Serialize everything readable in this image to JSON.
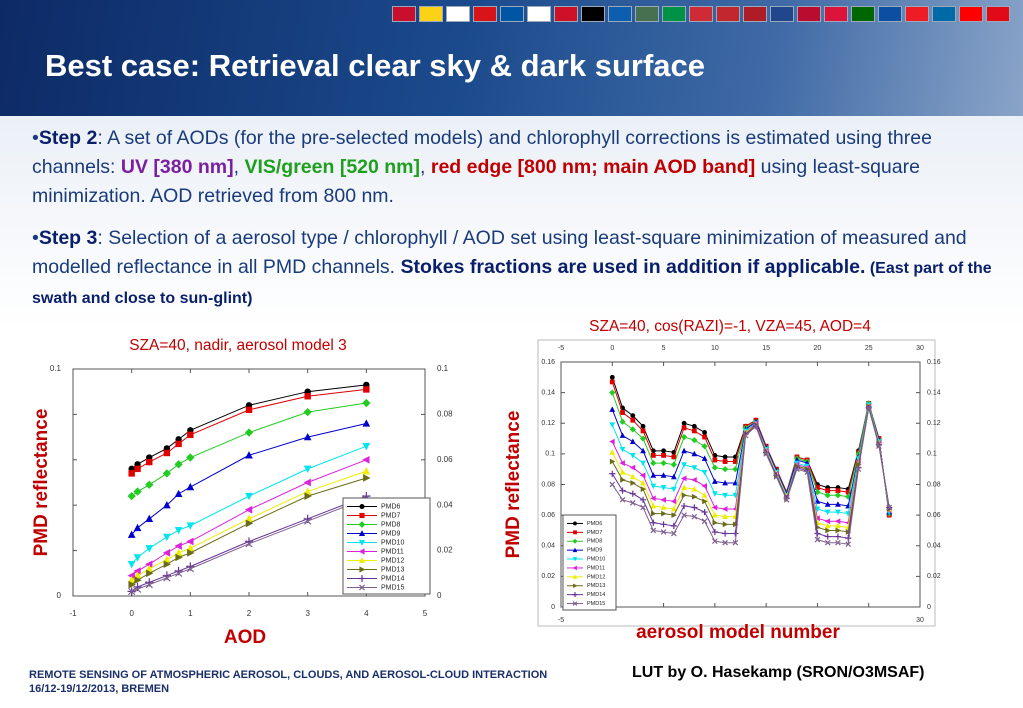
{
  "header": {
    "title": "Best case: Retrieval clear sky & dark surface"
  },
  "bullet_1": [
    "Step 2",
    ": A set of AODs (for the pre-selected models) and chlorophyll corrections is estimated using three channels: ",
    "UV [380 nm]",
    ", ",
    "VIS/green [520 nm]",
    ", ",
    "red edge [800 nm; main AOD band]",
    " using least-square minimization. AOD retrieved from 800 nm."
  ],
  "bullet_2": [
    "Step 3",
    ": Selection of a aerosol type / chlorophyll / AOD  set using least-square minimization of measured and modelled reflectance in all PMD channels. ",
    "Stokes fractions are used in addition if applicable.",
    " (East part of the swath and close to sun-glint)"
  ],
  "footer": {
    "conference": "REMOTE SENSING OF ATMOSPHERIC AEROSOL, CLOUDS, AND AEROSOL-CLOUD INTERACTION",
    "date": "16/12-19/12/2013, BREMEN",
    "credit": "LUT by O. Hasekamp (SRON/O3MSAF)"
  },
  "chart_data": [
    {
      "type": "line",
      "title": "SZA=40, nadir, aerosol model 3",
      "xlabel": "AOD",
      "ylabel": "PMD reflectance",
      "x": [
        0,
        0.1,
        0.3,
        0.6,
        0.8,
        1,
        2,
        3,
        4
      ],
      "xlim": [
        -1,
        5
      ],
      "xticks": [
        -1,
        0,
        1,
        2,
        3,
        4,
        5
      ],
      "ylim": [
        0,
        0.1
      ],
      "yticks": [
        0,
        0.02,
        0.04,
        0.06,
        0.08,
        0.1
      ],
      "series": [
        {
          "name": "PMD6",
          "color": "#000000",
          "marker": "circle",
          "values": [
            0.056,
            0.058,
            0.061,
            0.065,
            0.069,
            0.073,
            0.084,
            0.09,
            0.093
          ]
        },
        {
          "name": "PMD7",
          "color": "#e00000",
          "marker": "square",
          "values": [
            0.054,
            0.056,
            0.059,
            0.063,
            0.067,
            0.071,
            0.082,
            0.088,
            0.091
          ]
        },
        {
          "name": "PMD8",
          "color": "#22cc22",
          "marker": "diamond",
          "values": [
            0.044,
            0.046,
            0.049,
            0.054,
            0.058,
            0.061,
            0.072,
            0.081,
            0.085
          ]
        },
        {
          "name": "PMD9",
          "color": "#0000cc",
          "marker": "tri-up",
          "values": [
            0.027,
            0.03,
            0.034,
            0.04,
            0.045,
            0.048,
            0.062,
            0.07,
            0.076
          ]
        },
        {
          "name": "PMD10",
          "color": "#00e5ee",
          "marker": "tri-down",
          "values": [
            0.014,
            0.017,
            0.021,
            0.026,
            0.029,
            0.031,
            0.044,
            0.056,
            0.066
          ]
        },
        {
          "name": "PMD11",
          "color": "#dd22dd",
          "marker": "tri-left",
          "values": [
            0.009,
            0.011,
            0.014,
            0.019,
            0.022,
            0.024,
            0.038,
            0.05,
            0.06
          ]
        },
        {
          "name": "PMD12",
          "color": "#eeee00",
          "marker": "tri-up",
          "values": [
            0.007,
            0.009,
            0.012,
            0.016,
            0.019,
            0.021,
            0.034,
            0.046,
            0.055
          ]
        },
        {
          "name": "PMD13",
          "color": "#6b6b1a",
          "marker": "tri-right",
          "values": [
            0.005,
            0.007,
            0.01,
            0.014,
            0.017,
            0.019,
            0.032,
            0.044,
            0.052
          ]
        },
        {
          "name": "PMD14",
          "color": "#663399",
          "marker": "plus",
          "values": [
            0.002,
            0.004,
            0.006,
            0.009,
            0.011,
            0.013,
            0.024,
            0.034,
            0.044
          ]
        },
        {
          "name": "PMD15",
          "color": "#7f6090",
          "marker": "cross",
          "values": [
            0.002,
            0.003,
            0.005,
            0.008,
            0.01,
            0.012,
            0.023,
            0.033,
            0.043
          ]
        }
      ]
    },
    {
      "type": "line",
      "title": "SZA=40, cos(RAZI)=-1, VZA=45, AOD=4",
      "xlabel": "aerosol model number",
      "ylabel": "PMD reflectance",
      "x": [
        0,
        1,
        2,
        3,
        4,
        5,
        6,
        7,
        8,
        9,
        10,
        11,
        12,
        13,
        14,
        15,
        16,
        17,
        18,
        19,
        20,
        21,
        22,
        23,
        24,
        25,
        26,
        27
      ],
      "xlim": [
        -5,
        30
      ],
      "xticks": [
        -5,
        0,
        5,
        10,
        15,
        20,
        25,
        30
      ],
      "ylim": [
        0,
        0.16
      ],
      "yticks": [
        0,
        0.02,
        0.04,
        0.06,
        0.08,
        0.1,
        0.12,
        0.14,
        0.16
      ],
      "series": [
        {
          "name": "PMD6",
          "color": "#000000",
          "marker": "circle",
          "values": [
            0.15,
            0.13,
            0.125,
            0.118,
            0.102,
            0.102,
            0.101,
            0.12,
            0.118,
            0.114,
            0.099,
            0.098,
            0.098,
            0.118,
            0.122,
            0.105,
            0.09,
            0.075,
            0.098,
            0.096,
            0.08,
            0.078,
            0.078,
            0.077,
            0.102,
            0.133,
            0.11,
            0.06
          ]
        },
        {
          "name": "PMD7",
          "color": "#e00000",
          "marker": "square",
          "values": [
            0.147,
            0.127,
            0.122,
            0.115,
            0.099,
            0.099,
            0.098,
            0.117,
            0.115,
            0.111,
            0.096,
            0.095,
            0.095,
            0.118,
            0.122,
            0.105,
            0.09,
            0.075,
            0.098,
            0.096,
            0.078,
            0.076,
            0.076,
            0.075,
            0.101,
            0.133,
            0.11,
            0.06
          ]
        },
        {
          "name": "PMD8",
          "color": "#22cc22",
          "marker": "diamond",
          "values": [
            0.14,
            0.121,
            0.116,
            0.11,
            0.094,
            0.094,
            0.093,
            0.111,
            0.109,
            0.105,
            0.091,
            0.09,
            0.09,
            0.117,
            0.121,
            0.104,
            0.089,
            0.074,
            0.097,
            0.095,
            0.075,
            0.073,
            0.073,
            0.072,
            0.1,
            0.133,
            0.109,
            0.061
          ]
        },
        {
          "name": "PMD9",
          "color": "#0000cc",
          "marker": "tri-up",
          "values": [
            0.129,
            0.112,
            0.108,
            0.102,
            0.086,
            0.086,
            0.085,
            0.102,
            0.1,
            0.097,
            0.082,
            0.081,
            0.081,
            0.116,
            0.121,
            0.104,
            0.089,
            0.074,
            0.096,
            0.094,
            0.069,
            0.067,
            0.067,
            0.066,
            0.098,
            0.132,
            0.109,
            0.062
          ]
        },
        {
          "name": "PMD10",
          "color": "#00e5ee",
          "marker": "tri-down",
          "values": [
            0.119,
            0.103,
            0.099,
            0.094,
            0.079,
            0.078,
            0.077,
            0.093,
            0.091,
            0.088,
            0.074,
            0.073,
            0.073,
            0.115,
            0.12,
            0.103,
            0.088,
            0.073,
            0.094,
            0.092,
            0.064,
            0.062,
            0.062,
            0.061,
            0.097,
            0.132,
            0.108,
            0.062
          ]
        },
        {
          "name": "PMD11",
          "color": "#dd22dd",
          "marker": "tri-left",
          "values": [
            0.108,
            0.094,
            0.091,
            0.086,
            0.071,
            0.07,
            0.069,
            0.084,
            0.083,
            0.079,
            0.065,
            0.064,
            0.064,
            0.114,
            0.12,
            0.102,
            0.087,
            0.072,
            0.093,
            0.091,
            0.058,
            0.056,
            0.056,
            0.055,
            0.095,
            0.131,
            0.107,
            0.063
          ]
        },
        {
          "name": "PMD12",
          "color": "#eeee00",
          "marker": "tri-up",
          "values": [
            0.101,
            0.088,
            0.085,
            0.081,
            0.066,
            0.065,
            0.064,
            0.078,
            0.077,
            0.073,
            0.06,
            0.059,
            0.059,
            0.114,
            0.119,
            0.102,
            0.087,
            0.072,
            0.092,
            0.09,
            0.055,
            0.053,
            0.053,
            0.052,
            0.094,
            0.131,
            0.107,
            0.064
          ]
        },
        {
          "name": "PMD13",
          "color": "#6b6b1a",
          "marker": "tri-right",
          "values": [
            0.095,
            0.083,
            0.081,
            0.077,
            0.061,
            0.061,
            0.06,
            0.073,
            0.072,
            0.069,
            0.055,
            0.054,
            0.054,
            0.113,
            0.119,
            0.101,
            0.086,
            0.071,
            0.092,
            0.09,
            0.052,
            0.05,
            0.05,
            0.049,
            0.093,
            0.131,
            0.106,
            0.064
          ]
        },
        {
          "name": "PMD14",
          "color": "#663399",
          "marker": "plus",
          "values": [
            0.087,
            0.076,
            0.074,
            0.07,
            0.055,
            0.054,
            0.053,
            0.066,
            0.065,
            0.062,
            0.049,
            0.048,
            0.048,
            0.113,
            0.118,
            0.101,
            0.086,
            0.071,
            0.091,
            0.089,
            0.048,
            0.046,
            0.046,
            0.045,
            0.091,
            0.13,
            0.106,
            0.065
          ]
        },
        {
          "name": "PMD15",
          "color": "#7f6090",
          "marker": "cross",
          "values": [
            0.08,
            0.07,
            0.068,
            0.065,
            0.05,
            0.049,
            0.048,
            0.06,
            0.059,
            0.056,
            0.043,
            0.042,
            0.042,
            0.112,
            0.118,
            0.1,
            0.085,
            0.07,
            0.09,
            0.088,
            0.044,
            0.042,
            0.042,
            0.041,
            0.09,
            0.13,
            0.105,
            0.065
          ]
        }
      ]
    }
  ]
}
